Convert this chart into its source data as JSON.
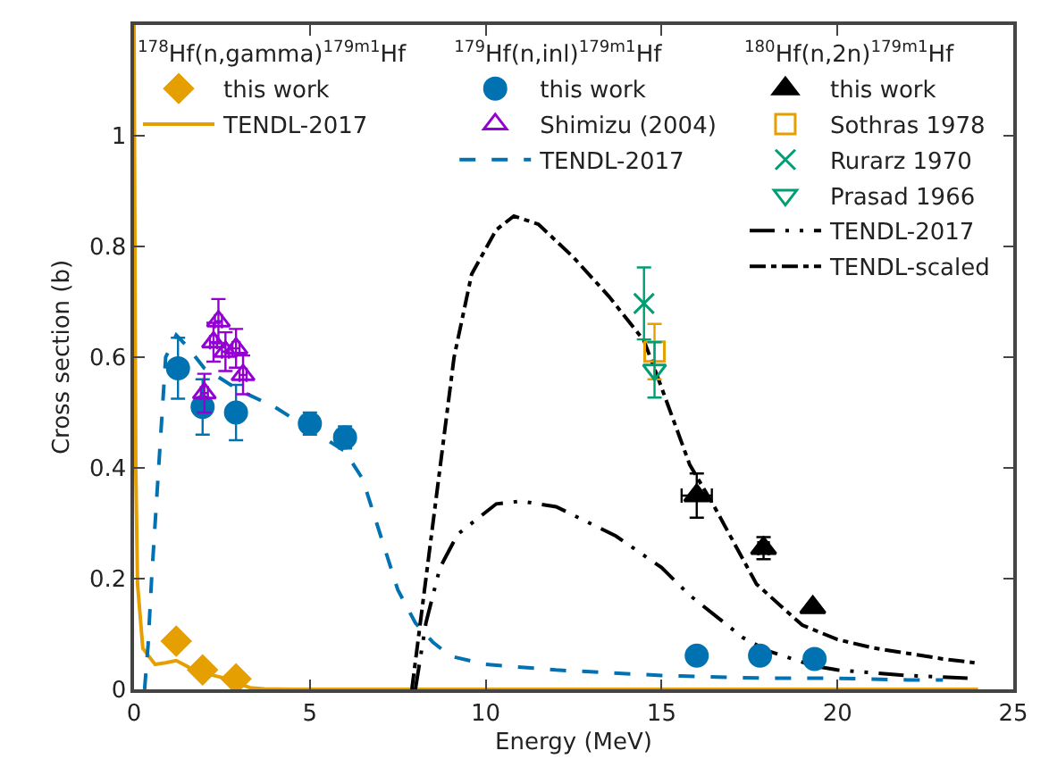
{
  "chart_data": {
    "type": "scatter",
    "xlabel": "Energy (MeV)",
    "ylabel": "Cross section (b)",
    "xlim": [
      0,
      25
    ],
    "xticks": [
      0,
      5,
      10,
      15,
      20,
      25
    ],
    "ylim": [
      0,
      1.2
    ],
    "yticks": [
      0,
      0.2,
      0.4,
      0.6,
      0.8,
      1
    ],
    "legend": "top",
    "annotations": [
      "$^{178}$Hf(n,gamma)$^{179m1}$Hf",
      "$^{179}$Hf(n,inl)$^{179m1}$Hf",
      "$^{180}$Hf(n,2n)$^{179m1}$Hf"
    ],
    "series": [
      {
        "name": "this work",
        "marker": "diamond",
        "color": "#e69f00",
        "x": [
          1.2,
          1.95,
          2.9
        ],
        "values": [
          0.087,
          0.035,
          0.019
        ]
      },
      {
        "name": "TENDL-2017",
        "type": "line",
        "line_style": "solid",
        "color": "#e69f00",
        "x": [
          0.0,
          0.05,
          0.1,
          0.25,
          0.6,
          0.9,
          1.2,
          1.5,
          1.76,
          2.2,
          2.6,
          3.0,
          3.3,
          3.7,
          4.5,
          24
        ],
        "values": [
          1.2,
          0.4,
          0.19,
          0.074,
          0.045,
          0.048,
          0.052,
          0.042,
          0.032,
          0.026,
          0.02,
          0.01,
          0.003,
          0.001,
          0,
          0
        ]
      },
      {
        "name": "this work",
        "marker": "circle",
        "color": "#0072b2",
        "x": [
          1.25,
          1.95,
          2.9,
          5.0,
          6.0,
          16.0,
          17.8,
          19.35
        ],
        "values": [
          0.58,
          0.51,
          0.5,
          0.48,
          0.455,
          0.061,
          0.061,
          0.055
        ],
        "errors": [
          0.055,
          0.05,
          0.05,
          0.02,
          0.02,
          null,
          null,
          null
        ]
      },
      {
        "name": "Shimizu (2004)",
        "marker": "triangle-open",
        "color": "#9400d3",
        "x": [
          2.0,
          2.26,
          2.4,
          2.6,
          2.9,
          3.1
        ],
        "values": [
          0.535,
          0.627,
          0.665,
          0.61,
          0.616,
          0.568
        ],
        "errors": [
          0.035,
          0.035,
          0.04,
          0.035,
          0.035,
          0.035
        ],
        "xerrors": [
          0.1,
          0.1,
          0.1,
          0.1,
          0.1,
          0.1
        ]
      },
      {
        "name": "TENDL-2017",
        "type": "line",
        "line_style": "dashed",
        "color": "#0072b2",
        "x": [
          0.3,
          0.4,
          0.5,
          0.75,
          0.9,
          1.2,
          1.5,
          2,
          2.5,
          3,
          4,
          5,
          6,
          6.5,
          7,
          7.5,
          8,
          8.5,
          9,
          10,
          12,
          15,
          18,
          20,
          22,
          23
        ],
        "values": [
          0,
          0.08,
          0.2,
          0.45,
          0.6,
          0.64,
          0.62,
          0.58,
          0.56,
          0.54,
          0.51,
          0.47,
          0.43,
          0.38,
          0.28,
          0.18,
          0.12,
          0.085,
          0.06,
          0.045,
          0.035,
          0.025,
          0.02,
          0.02,
          0.017,
          0.017
        ]
      },
      {
        "name": "this work",
        "marker": "triangle",
        "color": "#000000",
        "x": [
          16.0,
          17.9,
          19.3
        ],
        "values": [
          0.35,
          0.255,
          0.148
        ],
        "errors": [
          0.04,
          0.02,
          null
        ],
        "xerrors": [
          0.43,
          0.15,
          null
        ]
      },
      {
        "name": "Sothras 1978",
        "marker": "square-open",
        "color": "#e69f00",
        "x": [
          14.8
        ],
        "values": [
          0.61
        ],
        "errors": [
          0.05
        ]
      },
      {
        "name": "Rurarz 1970",
        "marker": "cross",
        "color": "#009e73",
        "x": [
          14.5
        ],
        "values": [
          0.697
        ],
        "errors": [
          0.065
        ]
      },
      {
        "name": "Prasad 1966",
        "marker": "triangle-down-open",
        "color": "#009e73",
        "x": [
          14.8
        ],
        "values": [
          0.577
        ],
        "errors": [
          0.05
        ]
      },
      {
        "name": "TENDL-2017",
        "type": "line",
        "line_style": "dashdotdot",
        "color": "#000000",
        "x": [
          8.0,
          8.3,
          8.7,
          9.2,
          10.3,
          11,
          12,
          13.7,
          15,
          15.8,
          17.3,
          18,
          19.35,
          20,
          22,
          23.7
        ],
        "values": [
          0,
          0.12,
          0.22,
          0.28,
          0.335,
          0.34,
          0.33,
          0.277,
          0.22,
          0.17,
          0.094,
          0.07,
          0.042,
          0.035,
          0.025,
          0.02
        ]
      },
      {
        "name": "TENDL-scaled",
        "type": "line",
        "line_style": "dashdot",
        "color": "#000000",
        "x": [
          7.9,
          8.3,
          8.7,
          9.1,
          9.6,
          10.3,
          10.8,
          11.5,
          12.5,
          13.5,
          14.5,
          15,
          15.8,
          16.5,
          17.7,
          19,
          20,
          21,
          22,
          23,
          23.9
        ],
        "values": [
          0,
          0.2,
          0.4,
          0.6,
          0.75,
          0.83,
          0.855,
          0.84,
          0.78,
          0.71,
          0.63,
          0.545,
          0.406,
          0.33,
          0.19,
          0.116,
          0.09,
          0.075,
          0.065,
          0.055,
          0.048
        ]
      }
    ]
  }
}
